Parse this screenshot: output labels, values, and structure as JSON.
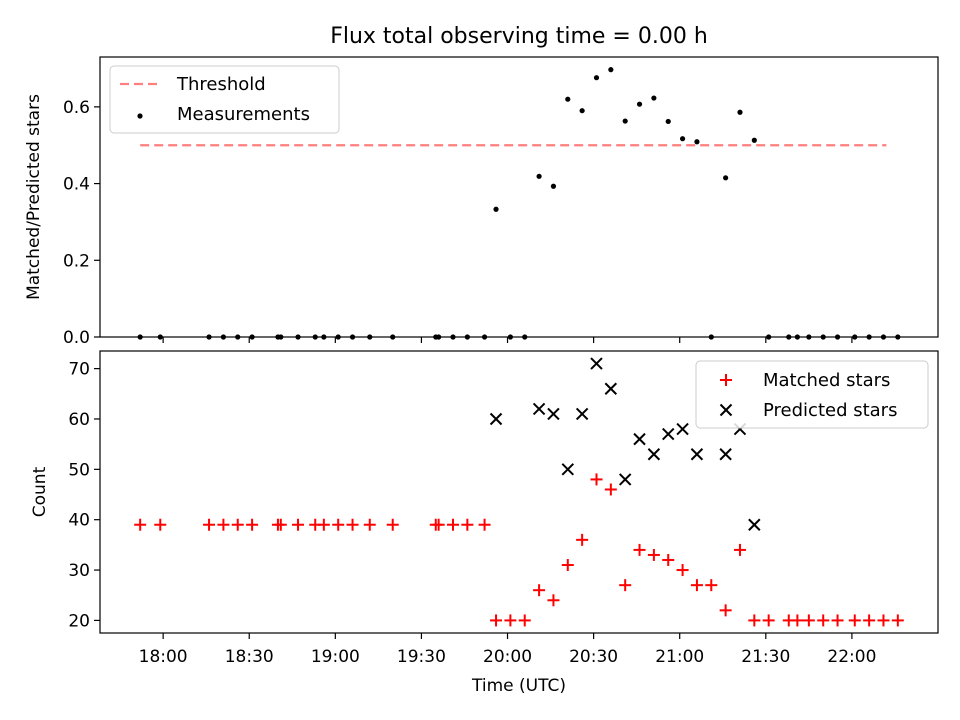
{
  "title": "Flux total observing time = 0.00 h",
  "xlabel": "Time (UTC)",
  "x_ticks": [
    "18:00",
    "18:30",
    "19:00",
    "19:30",
    "20:00",
    "20:30",
    "21:00",
    "21:30",
    "22:00"
  ],
  "chart_data": [
    {
      "type": "scatter",
      "ylabel": "Matched/Predicted stars",
      "x_range": [
        "17:38",
        "22:30"
      ],
      "ylim": [
        0,
        0.73
      ],
      "y_ticks": [
        "0.0",
        "0.2",
        "0.4",
        "0.6"
      ],
      "legend_position": "top-left",
      "threshold": {
        "name": "Threshold",
        "value": 0.5,
        "x_start": "17:52",
        "x_end": "22:12",
        "color": "#ff7f7f"
      },
      "series": [
        {
          "name": "Measurements",
          "color": "#000000",
          "points": [
            [
              "17:52",
              0
            ],
            [
              "17:59",
              0
            ],
            [
              "18:16",
              0
            ],
            [
              "18:21",
              0
            ],
            [
              "18:26",
              0
            ],
            [
              "18:31",
              0
            ],
            [
              "18:40",
              0
            ],
            [
              "18:41",
              0
            ],
            [
              "18:47",
              0
            ],
            [
              "18:53",
              0
            ],
            [
              "18:56",
              0
            ],
            [
              "19:01",
              0
            ],
            [
              "19:06",
              0
            ],
            [
              "19:12",
              0
            ],
            [
              "19:20",
              0
            ],
            [
              "19:35",
              0
            ],
            [
              "19:36",
              0
            ],
            [
              "19:41",
              0
            ],
            [
              "19:46",
              0
            ],
            [
              "19:52",
              0
            ],
            [
              "19:56",
              0.333
            ],
            [
              "20:01",
              0
            ],
            [
              "20:06",
              0
            ],
            [
              "20:11",
              0.419
            ],
            [
              "20:16",
              0.393
            ],
            [
              "20:21",
              0.62
            ],
            [
              "20:26",
              0.59
            ],
            [
              "20:31",
              0.676
            ],
            [
              "20:36",
              0.697
            ],
            [
              "20:41",
              0.563
            ],
            [
              "20:46",
              0.607
            ],
            [
              "20:51",
              0.623
            ],
            [
              "20:56",
              0.562
            ],
            [
              "21:01",
              0.517
            ],
            [
              "21:06",
              0.509
            ],
            [
              "21:11",
              0
            ],
            [
              "21:16",
              0.415
            ],
            [
              "21:21",
              0.586
            ],
            [
              "21:26",
              0.513
            ],
            [
              "21:31",
              0
            ],
            [
              "21:38",
              0
            ],
            [
              "21:41",
              0
            ],
            [
              "21:45",
              0
            ],
            [
              "21:50",
              0
            ],
            [
              "21:55",
              0
            ],
            [
              "22:01",
              0
            ],
            [
              "22:06",
              0
            ],
            [
              "22:11",
              0
            ],
            [
              "22:16",
              0
            ]
          ]
        }
      ]
    },
    {
      "type": "scatter",
      "ylabel": "Count",
      "x_range": [
        "17:38",
        "22:30"
      ],
      "ylim": [
        17.5,
        73.5
      ],
      "y_ticks": [
        "20",
        "30",
        "40",
        "50",
        "60",
        "70"
      ],
      "legend_position": "top-right",
      "series": [
        {
          "name": "Matched stars",
          "marker": "plus",
          "color": "#ff0000",
          "points": [
            [
              "17:52",
              39
            ],
            [
              "17:59",
              39
            ],
            [
              "18:16",
              39
            ],
            [
              "18:21",
              39
            ],
            [
              "18:26",
              39
            ],
            [
              "18:31",
              39
            ],
            [
              "18:40",
              39
            ],
            [
              "18:41",
              39
            ],
            [
              "18:47",
              39
            ],
            [
              "18:53",
              39
            ],
            [
              "18:56",
              39
            ],
            [
              "19:01",
              39
            ],
            [
              "19:06",
              39
            ],
            [
              "19:12",
              39
            ],
            [
              "19:20",
              39
            ],
            [
              "19:35",
              39
            ],
            [
              "19:36",
              39
            ],
            [
              "19:41",
              39
            ],
            [
              "19:46",
              39
            ],
            [
              "19:52",
              39
            ],
            [
              "19:56",
              20
            ],
            [
              "20:01",
              20
            ],
            [
              "20:06",
              20
            ],
            [
              "20:11",
              26
            ],
            [
              "20:16",
              24
            ],
            [
              "20:21",
              31
            ],
            [
              "20:26",
              36
            ],
            [
              "20:31",
              48
            ],
            [
              "20:36",
              46
            ],
            [
              "20:41",
              27
            ],
            [
              "20:46",
              34
            ],
            [
              "20:51",
              33
            ],
            [
              "20:56",
              32
            ],
            [
              "21:01",
              30
            ],
            [
              "21:06",
              27
            ],
            [
              "21:11",
              27
            ],
            [
              "21:16",
              22
            ],
            [
              "21:21",
              34
            ],
            [
              "21:26",
              20
            ],
            [
              "21:31",
              20
            ],
            [
              "21:38",
              20
            ],
            [
              "21:41",
              20
            ],
            [
              "21:45",
              20
            ],
            [
              "21:50",
              20
            ],
            [
              "21:55",
              20
            ],
            [
              "22:01",
              20
            ],
            [
              "22:06",
              20
            ],
            [
              "22:11",
              20
            ],
            [
              "22:16",
              20
            ]
          ]
        },
        {
          "name": "Predicted stars",
          "marker": "x",
          "color": "#000000",
          "points": [
            [
              "19:56",
              60
            ],
            [
              "20:11",
              62
            ],
            [
              "20:16",
              61
            ],
            [
              "20:21",
              50
            ],
            [
              "20:26",
              61
            ],
            [
              "20:31",
              71
            ],
            [
              "20:36",
              66
            ],
            [
              "20:41",
              48
            ],
            [
              "20:46",
              56
            ],
            [
              "20:51",
              53
            ],
            [
              "20:56",
              57
            ],
            [
              "21:01",
              58
            ],
            [
              "21:06",
              53
            ],
            [
              "21:16",
              53
            ],
            [
              "21:21",
              58
            ],
            [
              "21:26",
              39
            ]
          ]
        }
      ]
    }
  ]
}
